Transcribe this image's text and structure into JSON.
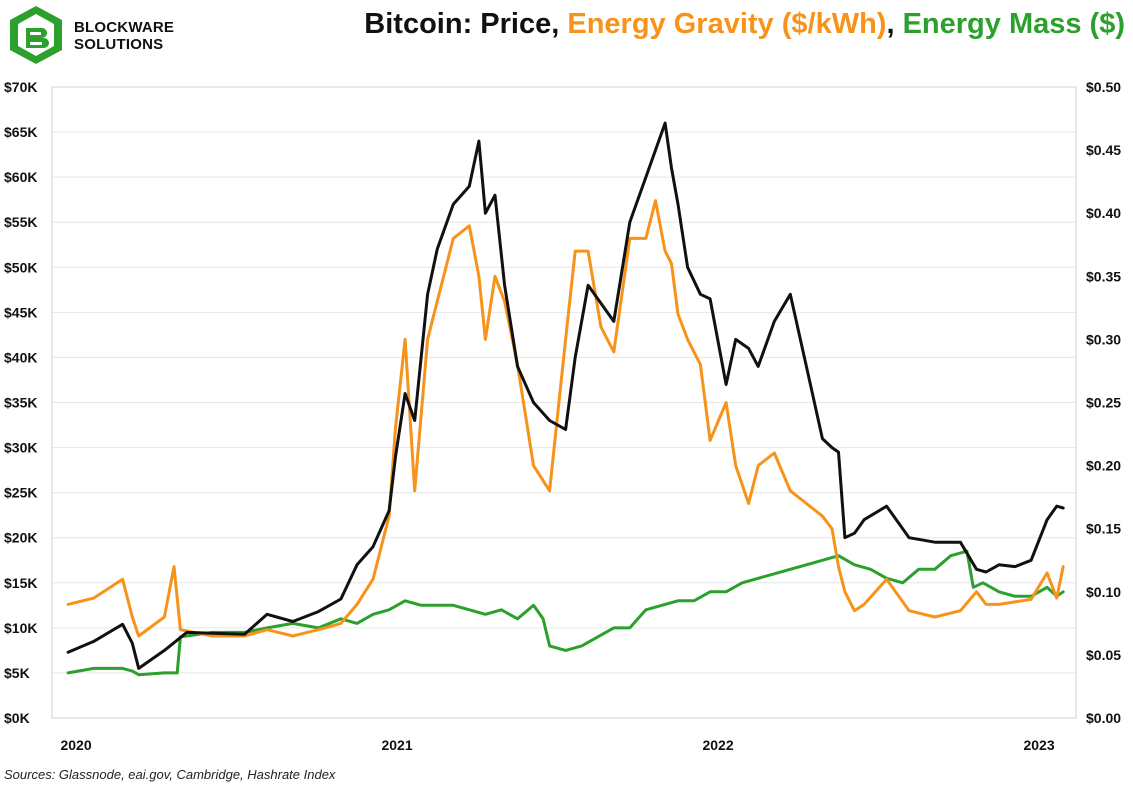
{
  "brand": {
    "line1": "BLOCKWARE",
    "line2": "SOLUTIONS"
  },
  "title": {
    "part1": "Bitcoin: Price",
    "sep1": ", ",
    "part2": "Energy Gravity ($/kWh)",
    "sep2": ", ",
    "part3": "Energy Mass ($)"
  },
  "source": "Sources: Glassnode, eai.gov, Cambridge, Hashrate Index",
  "colors": {
    "price": "#111111",
    "gravity": "#f7931a",
    "mass": "#2ca02c",
    "grid": "#e6e6e6"
  },
  "chart_data": {
    "type": "line",
    "title": "Bitcoin: Price, Energy Gravity ($/kWh), Energy Mass ($)",
    "x_ticks": [
      {
        "label": "2020",
        "t": 2020.0
      },
      {
        "label": "2021",
        "t": 2021.0
      },
      {
        "label": "2022",
        "t": 2022.0
      },
      {
        "label": "2023",
        "t": 2023.0
      }
    ],
    "xlim": [
      2019.95,
      2023.14
    ],
    "y_left": {
      "ticks": [
        "$0K",
        "$5K",
        "$10K",
        "$15K",
        "$20K",
        "$25K",
        "$30K",
        "$35K",
        "$40K",
        "$45K",
        "$50K",
        "$55K",
        "$60K",
        "$65K",
        "$70K"
      ],
      "values": [
        0,
        5000,
        10000,
        15000,
        20000,
        25000,
        30000,
        35000,
        40000,
        45000,
        50000,
        55000,
        60000,
        65000,
        70000
      ],
      "lim": [
        0,
        70000
      ]
    },
    "y_right": {
      "ticks": [
        "$0.00",
        "$0.05",
        "$0.10",
        "$0.15",
        "$0.20",
        "$0.25",
        "$0.30",
        "$0.35",
        "$0.40",
        "$0.45",
        "$0.50"
      ],
      "values": [
        0,
        0.05,
        0.1,
        0.15,
        0.2,
        0.25,
        0.3,
        0.35,
        0.4,
        0.45,
        0.5
      ],
      "lim": [
        0,
        0.5
      ]
    },
    "grid": true,
    "series": [
      {
        "name": "Price",
        "axis": "left",
        "x": [
          2020.0,
          2020.08,
          2020.17,
          2020.2,
          2020.22,
          2020.3,
          2020.37,
          2020.45,
          2020.55,
          2020.62,
          2020.7,
          2020.78,
          2020.85,
          2020.9,
          2020.95,
          2021.0,
          2021.02,
          2021.05,
          2021.08,
          2021.12,
          2021.15,
          2021.2,
          2021.25,
          2021.28,
          2021.3,
          2021.33,
          2021.36,
          2021.4,
          2021.45,
          2021.5,
          2021.55,
          2021.58,
          2021.62,
          2021.66,
          2021.7,
          2021.75,
          2021.8,
          2021.83,
          2021.86,
          2021.88,
          2021.9,
          2021.93,
          2021.97,
          2022.0,
          2022.05,
          2022.08,
          2022.12,
          2022.15,
          2022.2,
          2022.25,
          2022.3,
          2022.35,
          2022.38,
          2022.4,
          2022.42,
          2022.45,
          2022.48,
          2022.55,
          2022.62,
          2022.7,
          2022.78,
          2022.83,
          2022.86,
          2022.9,
          2022.95,
          2023.0,
          2023.05,
          2023.08,
          2023.1
        ],
        "y": [
          7300,
          8500,
          10400,
          8300,
          5500,
          7500,
          9500,
          9400,
          9300,
          11500,
          10700,
          11800,
          13200,
          17000,
          19000,
          23000,
          29000,
          36000,
          33000,
          47000,
          52000,
          57000,
          59000,
          64000,
          56000,
          58000,
          48000,
          39000,
          35000,
          33000,
          32000,
          40000,
          48000,
          46000,
          44000,
          55000,
          60000,
          63000,
          66000,
          61000,
          57000,
          50000,
          47000,
          46500,
          37000,
          42000,
          41000,
          39000,
          44000,
          47000,
          39000,
          31000,
          30000,
          29500,
          20000,
          20500,
          22000,
          23500,
          20000,
          19500,
          19500,
          16500,
          16200,
          17000,
          16800,
          17500,
          22000,
          23500,
          23300
        ]
      },
      {
        "name": "Energy Gravity ($/kWh)",
        "axis": "right",
        "x": [
          2020.0,
          2020.08,
          2020.17,
          2020.2,
          2020.22,
          2020.3,
          2020.33,
          2020.35,
          2020.45,
          2020.55,
          2020.62,
          2020.7,
          2020.78,
          2020.85,
          2020.9,
          2020.95,
          2021.0,
          2021.02,
          2021.05,
          2021.08,
          2021.12,
          2021.15,
          2021.2,
          2021.25,
          2021.28,
          2021.3,
          2021.33,
          2021.36,
          2021.4,
          2021.45,
          2021.5,
          2021.55,
          2021.58,
          2021.62,
          2021.66,
          2021.7,
          2021.75,
          2021.8,
          2021.83,
          2021.86,
          2021.88,
          2021.9,
          2021.93,
          2021.97,
          2022.0,
          2022.05,
          2022.08,
          2022.12,
          2022.15,
          2022.2,
          2022.25,
          2022.3,
          2022.35,
          2022.38,
          2022.4,
          2022.42,
          2022.45,
          2022.48,
          2022.55,
          2022.62,
          2022.7,
          2022.78,
          2022.83,
          2022.86,
          2022.9,
          2022.95,
          2023.0,
          2023.05,
          2023.08,
          2023.1
        ],
        "y": [
          0.09,
          0.095,
          0.11,
          0.08,
          0.065,
          0.08,
          0.12,
          0.07,
          0.065,
          0.065,
          0.07,
          0.065,
          0.07,
          0.075,
          0.09,
          0.11,
          0.16,
          0.23,
          0.3,
          0.18,
          0.3,
          0.33,
          0.38,
          0.39,
          0.35,
          0.3,
          0.35,
          0.33,
          0.28,
          0.2,
          0.18,
          0.3,
          0.37,
          0.37,
          0.31,
          0.29,
          0.38,
          0.38,
          0.41,
          0.37,
          0.36,
          0.32,
          0.3,
          0.28,
          0.22,
          0.25,
          0.2,
          0.17,
          0.2,
          0.21,
          0.18,
          0.17,
          0.16,
          0.15,
          0.12,
          0.1,
          0.085,
          0.09,
          0.11,
          0.085,
          0.08,
          0.085,
          0.1,
          0.09,
          0.09,
          0.092,
          0.094,
          0.115,
          0.095,
          0.12
        ]
      },
      {
        "name": "Energy Mass ($)",
        "axis": "left",
        "x": [
          2020.0,
          2020.08,
          2020.17,
          2020.2,
          2020.22,
          2020.3,
          2020.34,
          2020.35,
          2020.45,
          2020.55,
          2020.62,
          2020.7,
          2020.78,
          2020.85,
          2020.9,
          2020.95,
          2021.0,
          2021.05,
          2021.1,
          2021.2,
          2021.25,
          2021.3,
          2021.35,
          2021.4,
          2021.45,
          2021.48,
          2021.5,
          2021.55,
          2021.6,
          2021.65,
          2021.7,
          2021.75,
          2021.8,
          2021.85,
          2021.9,
          2021.95,
          2022.0,
          2022.05,
          2022.1,
          2022.15,
          2022.2,
          2022.25,
          2022.3,
          2022.35,
          2022.4,
          2022.45,
          2022.5,
          2022.55,
          2022.6,
          2022.65,
          2022.7,
          2022.75,
          2022.8,
          2022.82,
          2022.85,
          2022.9,
          2022.95,
          2023.0,
          2023.05,
          2023.08,
          2023.1
        ],
        "y": [
          5000,
          5500,
          5500,
          5200,
          4800,
          5000,
          5000,
          9000,
          9500,
          9500,
          10000,
          10500,
          10000,
          11000,
          10500,
          11500,
          12000,
          13000,
          12500,
          12500,
          12000,
          11500,
          12000,
          11000,
          12500,
          11000,
          8000,
          7500,
          8000,
          9000,
          10000,
          10000,
          12000,
          12500,
          13000,
          13000,
          14000,
          14000,
          15000,
          15500,
          16000,
          16500,
          17000,
          17500,
          18000,
          17000,
          16500,
          15500,
          15000,
          16500,
          16500,
          18000,
          18500,
          14500,
          15000,
          14000,
          13500,
          13500,
          14500,
          13500,
          14000
        ]
      }
    ]
  }
}
